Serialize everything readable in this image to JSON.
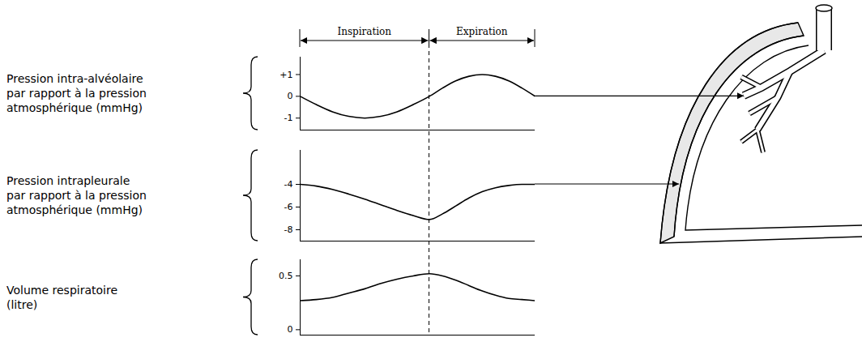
{
  "phases": [
    {
      "label": "Inspiration",
      "from": 0,
      "to": 2.2
    },
    {
      "label": "Expiration",
      "from": 2.2,
      "to": 4
    }
  ],
  "chart_data": [
    {
      "type": "line",
      "ylabel": [
        "Pression intra-alvéolaire",
        "par rapport à la pression",
        "atmosphérique (mmHg)"
      ],
      "x": [
        0,
        0.275,
        0.55,
        0.825,
        1.1,
        1.375,
        1.65,
        1.925,
        2.2,
        2.425,
        2.65,
        2.875,
        3.1,
        3.325,
        3.55,
        3.775,
        4
      ],
      "values": [
        0,
        -0.38,
        -0.71,
        -0.92,
        -1.0,
        -0.92,
        -0.71,
        -0.38,
        0,
        0.38,
        0.71,
        0.92,
        1.0,
        0.92,
        0.71,
        0.38,
        0
      ],
      "color": "#000000",
      "xlim": [
        0,
        4
      ],
      "ylim": [
        -1.55,
        1.8
      ],
      "yticks": [
        {
          "value": 1,
          "label": "+1"
        },
        0,
        -1
      ],
      "tick_labels": "y"
    },
    {
      "type": "line",
      "ylabel": [
        "Pression intrapleurale",
        "par rapport à la pression",
        "atmosphérique (mmHg)"
      ],
      "x": [
        0,
        0.275,
        0.55,
        0.825,
        1.1,
        1.375,
        1.65,
        1.925,
        2.2,
        2.425,
        2.65,
        2.875,
        3.1,
        3.325,
        3.55,
        3.775,
        4
      ],
      "values": [
        -4.0,
        -4.15,
        -4.45,
        -4.85,
        -5.3,
        -5.8,
        -6.3,
        -6.75,
        -7.1,
        -6.6,
        -5.9,
        -5.2,
        -4.65,
        -4.3,
        -4.1,
        -4.0,
        -4.0
      ],
      "color": "#000000",
      "xlim": [
        0,
        4
      ],
      "ylim": [
        -9,
        -1
      ],
      "yticks": [
        -4,
        -6,
        -8
      ],
      "tick_labels": "y"
    },
    {
      "type": "line",
      "ylabel": [
        "Volume respiratoire",
        "(litre)"
      ],
      "x": [
        0,
        0.275,
        0.55,
        0.825,
        1.1,
        1.375,
        1.65,
        1.925,
        2.2,
        2.425,
        2.65,
        2.875,
        3.1,
        3.325,
        3.55,
        3.775,
        4
      ],
      "values": [
        0.27,
        0.28,
        0.3,
        0.34,
        0.38,
        0.43,
        0.47,
        0.5,
        0.52,
        0.5,
        0.46,
        0.41,
        0.36,
        0.32,
        0.29,
        0.28,
        0.27
      ],
      "color": "#000000",
      "xlim": [
        0,
        4
      ],
      "ylim": [
        -0.05,
        0.65
      ],
      "yticks": [
        0.5,
        0
      ],
      "tick_labels": "y"
    }
  ]
}
